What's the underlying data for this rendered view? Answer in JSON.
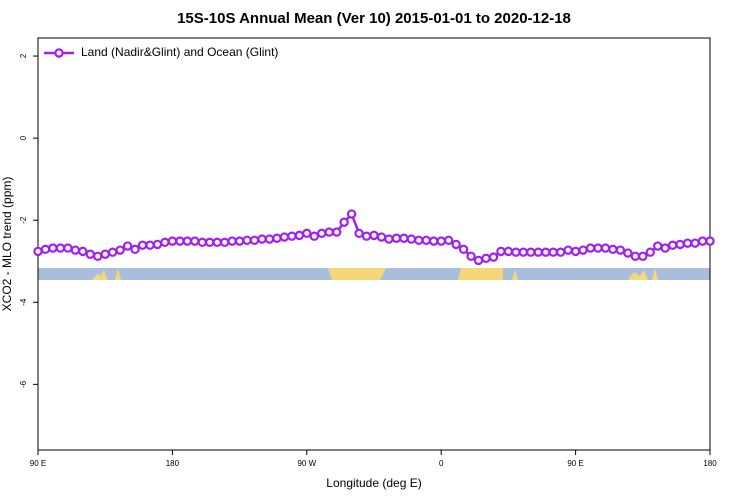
{
  "chart_data": {
    "type": "line",
    "title": "15S-10S Annual Mean (Ver 10)   2015-01-01 to 2020-12-18",
    "x_label": "Longitude (deg E)",
    "y_label": "XCO2 - MLO trend (ppm)",
    "x": [
      90,
      95,
      100,
      105,
      110,
      115,
      120,
      125,
      130,
      135,
      140,
      145,
      150,
      155,
      160,
      165,
      170,
      175,
      180,
      185,
      190,
      195,
      200,
      205,
      210,
      215,
      220,
      225,
      230,
      235,
      240,
      245,
      250,
      255,
      260,
      265,
      270,
      275,
      280,
      285,
      290,
      295,
      300,
      305,
      310,
      315,
      320,
      325,
      330,
      335,
      340,
      345,
      350,
      355,
      360,
      365,
      370,
      375,
      380,
      385,
      390,
      395,
      400,
      405,
      410,
      415,
      420,
      425,
      430,
      435,
      440,
      445,
      450,
      455,
      460,
      465,
      470,
      475,
      480,
      485,
      490,
      495,
      500,
      505,
      510,
      515,
      520,
      525,
      530,
      535,
      540
    ],
    "series": [
      {
        "name": "Land (Nadir&Glint) and Ocean (Glint)",
        "color": "#a020f0",
        "values": [
          -2.76,
          -2.71,
          -2.68,
          -2.68,
          -2.68,
          -2.73,
          -2.76,
          -2.83,
          -2.88,
          -2.83,
          -2.78,
          -2.73,
          -2.63,
          -2.71,
          -2.61,
          -2.61,
          -2.59,
          -2.54,
          -2.51,
          -2.51,
          -2.51,
          -2.51,
          -2.54,
          -2.54,
          -2.54,
          -2.54,
          -2.51,
          -2.51,
          -2.49,
          -2.49,
          -2.46,
          -2.46,
          -2.44,
          -2.41,
          -2.39,
          -2.37,
          -2.32,
          -2.39,
          -2.32,
          -2.29,
          -2.29,
          -2.05,
          -1.85,
          -2.32,
          -2.39,
          -2.37,
          -2.41,
          -2.46,
          -2.44,
          -2.44,
          -2.46,
          -2.49,
          -2.49,
          -2.51,
          -2.51,
          -2.49,
          -2.59,
          -2.71,
          -2.88,
          -2.98,
          -2.93,
          -2.9,
          -2.76,
          -2.76,
          -2.78,
          -2.78,
          -2.78,
          -2.78,
          -2.78,
          -2.78,
          -2.78,
          -2.73,
          -2.76,
          -2.73,
          -2.68,
          -2.68,
          -2.68,
          -2.71,
          -2.73,
          -2.8,
          -2.88,
          -2.88,
          -2.78,
          -2.63,
          -2.68,
          -2.61,
          -2.59,
          -2.56,
          -2.56,
          -2.51,
          -2.51
        ]
      }
    ],
    "xlim": [
      90,
      540
    ],
    "xticks": [
      90,
      180,
      {
        "value": 270,
        "label": "90 W"
      },
      {
        "value": 360,
        "label": "0"
      },
      {
        "value": 450,
        "label": "90 E"
      },
      {
        "value": 540,
        "label": "180"
      }
    ],
    "xtick_first_label": "90 E",
    "ylim": [
      -7.6,
      2.44
    ],
    "yticks": [
      -6,
      -4,
      -2,
      0,
      2
    ],
    "legend": "top-left"
  }
}
